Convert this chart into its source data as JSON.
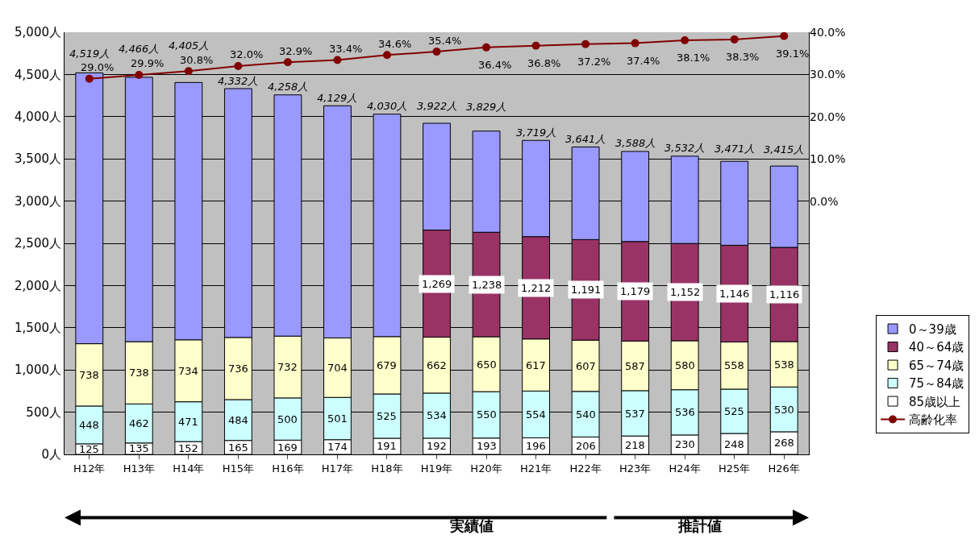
{
  "chart_data": {
    "type": "bar",
    "stacked": true,
    "categories": [
      "H12年",
      "H13年",
      "H14年",
      "H15年",
      "H16年",
      "H17年",
      "H18年",
      "H19年",
      "H20年",
      "H21年",
      "H22年",
      "H23年",
      "H24年",
      "H25年",
      "H26年"
    ],
    "series": [
      {
        "name": "85歳以上",
        "color": "#ffffff",
        "values": [
          125,
          135,
          152,
          165,
          169,
          174,
          191,
          192,
          193,
          196,
          206,
          218,
          230,
          248,
          268
        ],
        "value_labels": [
          "125",
          "135",
          "152",
          "165",
          "169",
          "174",
          "191",
          "192",
          "193",
          "196",
          "206",
          "218",
          "230",
          "248",
          "268"
        ]
      },
      {
        "name": "75～84歳",
        "color": "#ccffff",
        "values": [
          448,
          462,
          471,
          484,
          500,
          501,
          525,
          534,
          550,
          554,
          540,
          537,
          536,
          525,
          530
        ],
        "value_labels": [
          "448",
          "462",
          "471",
          "484",
          "500",
          "501",
          "525",
          "534",
          "550",
          "554",
          "540",
          "537",
          "536",
          "525",
          "530"
        ]
      },
      {
        "name": "65～74歳",
        "color": "#ffffcc",
        "values": [
          738,
          738,
          734,
          736,
          732,
          704,
          679,
          662,
          650,
          617,
          607,
          587,
          580,
          558,
          538
        ],
        "value_labels": [
          "738",
          "738",
          "734",
          "736",
          "732",
          "704",
          "679",
          "662",
          "650",
          "617",
          "607",
          "587",
          "580",
          "558",
          "538"
        ]
      },
      {
        "name": "40～64歳",
        "color": "#993366",
        "values": [
          null,
          null,
          null,
          null,
          null,
          null,
          null,
          1269,
          1238,
          1212,
          1191,
          1179,
          1152,
          1146,
          1116
        ],
        "value_labels": [
          null,
          null,
          null,
          null,
          null,
          null,
          null,
          "1,269",
          "1,238",
          "1,212",
          "1,191",
          "1,179",
          "1,152",
          "1,146",
          "1,116"
        ]
      },
      {
        "name": "0～39歳",
        "color": "#9999ff",
        "values": [
          3208,
          3131,
          3048,
          2947,
          2857,
          2750,
          2635,
          1265,
          1198,
          1140,
          1097,
          1067,
          1034,
          994,
          963
        ]
      },
      {
        "name": "高齢化率",
        "type": "line",
        "axis": "y2",
        "color": "#800000",
        "marker": "circle",
        "values": [
          29.0,
          29.9,
          30.8,
          32.0,
          32.9,
          33.4,
          34.6,
          35.4,
          36.4,
          36.8,
          37.2,
          37.4,
          38.1,
          38.3,
          39.1
        ],
        "value_labels": [
          "29.0%",
          "29.9%",
          "30.8%",
          "32.0%",
          "32.9%",
          "33.4%",
          "34.6%",
          "35.4%",
          "36.4%",
          "36.8%",
          "37.2%",
          "37.4%",
          "38.1%",
          "38.3%",
          "39.1%"
        ]
      }
    ],
    "totals": [
      "4,519人",
      "4,466人",
      "4,405人",
      "4,332人",
      "4,258人",
      "4,129人",
      "4,030人",
      "3,922人",
      "3,829人",
      "3,719人",
      "3,641人",
      "3,588人",
      "3,532人",
      "3,471人",
      "3,415人"
    ],
    "ylim": [
      0,
      5000
    ],
    "yticks": [
      {
        "value": 0,
        "label": "0人"
      },
      {
        "value": 500,
        "label": "500人"
      },
      {
        "value": 1000,
        "label": "1,000人"
      },
      {
        "value": 1500,
        "label": "1,500人"
      },
      {
        "value": 2000,
        "label": "2,000人"
      },
      {
        "value": 2500,
        "label": "2,500人"
      },
      {
        "value": 3000,
        "label": "3,000人"
      },
      {
        "value": 3500,
        "label": "3,500人"
      },
      {
        "value": 4000,
        "label": "4,000人"
      },
      {
        "value": 4500,
        "label": "4,500人"
      },
      {
        "value": 5000,
        "label": "5,000人"
      }
    ],
    "y2lim": [
      -60,
      40
    ],
    "y2ticks": [
      {
        "value": 0,
        "label": "0.0%"
      },
      {
        "value": 10,
        "label": "10.0%"
      },
      {
        "value": 20,
        "label": "20.0%"
      },
      {
        "value": 30,
        "label": "30.0%"
      },
      {
        "value": 40,
        "label": "40.0%"
      }
    ],
    "grid": "y",
    "legend": "right",
    "annotations": [
      "実績値",
      "推計値"
    ]
  }
}
